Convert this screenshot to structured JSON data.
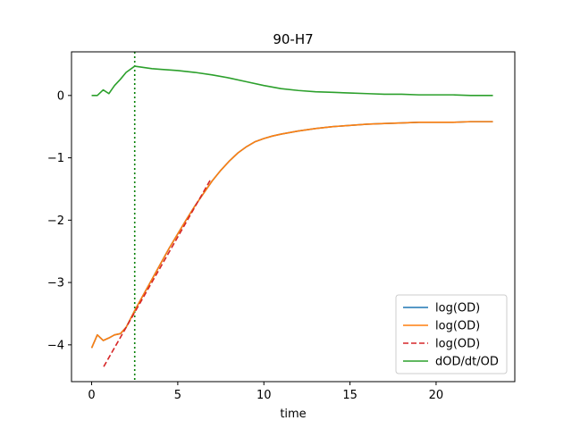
{
  "chart_data": {
    "type": "line",
    "title": "90-H7",
    "xlabel": "time",
    "ylabel": "",
    "xlim": [
      -1.17,
      24.57
    ],
    "ylim": [
      -4.59,
      0.7
    ],
    "xticks": [
      0,
      5,
      10,
      15,
      20
    ],
    "yticks": [
      -4,
      -3,
      -2,
      -1,
      0
    ],
    "grid": false,
    "legend_position": "lower-right",
    "vline": {
      "x": 2.5,
      "color": "#008000",
      "style": "dotted"
    },
    "series": [
      {
        "name": "log(OD)",
        "color": "#1f77b4",
        "style": "solid",
        "x": [
          0,
          0.33,
          0.67,
          1,
          1.33,
          1.67,
          2,
          2.5,
          3,
          3.5,
          4,
          4.5,
          5,
          5.5,
          6,
          6.5,
          7,
          7.5,
          8,
          8.5,
          9,
          9.5,
          10,
          10.5,
          11,
          12,
          13,
          14,
          15,
          16,
          17,
          18,
          19,
          20,
          21,
          22,
          23.3
        ],
        "y": [
          -4.05,
          -3.84,
          -3.93,
          -3.89,
          -3.84,
          -3.82,
          -3.72,
          -3.45,
          -3.2,
          -2.95,
          -2.7,
          -2.45,
          -2.22,
          -1.99,
          -1.77,
          -1.57,
          -1.37,
          -1.2,
          -1.05,
          -0.92,
          -0.82,
          -0.74,
          -0.69,
          -0.65,
          -0.62,
          -0.57,
          -0.53,
          -0.5,
          -0.48,
          -0.46,
          -0.45,
          -0.44,
          -0.43,
          -0.43,
          -0.43,
          -0.42,
          -0.42
        ]
      },
      {
        "name": "log(OD)",
        "color": "#ff7f0e",
        "style": "solid",
        "x": [
          0,
          0.33,
          0.67,
          1,
          1.33,
          1.67,
          2,
          2.5,
          3,
          3.5,
          4,
          4.5,
          5,
          5.5,
          6,
          6.5,
          7,
          7.5,
          8,
          8.5,
          9,
          9.5,
          10,
          10.5,
          11,
          12,
          13,
          14,
          15,
          16,
          17,
          18,
          19,
          20,
          21,
          22,
          23.3
        ],
        "y": [
          -4.05,
          -3.84,
          -3.93,
          -3.89,
          -3.84,
          -3.82,
          -3.72,
          -3.45,
          -3.2,
          -2.95,
          -2.7,
          -2.45,
          -2.22,
          -1.99,
          -1.77,
          -1.57,
          -1.37,
          -1.2,
          -1.05,
          -0.92,
          -0.82,
          -0.74,
          -0.69,
          -0.65,
          -0.62,
          -0.57,
          -0.53,
          -0.5,
          -0.48,
          -0.46,
          -0.45,
          -0.44,
          -0.43,
          -0.43,
          -0.43,
          -0.42,
          -0.42
        ]
      },
      {
        "name": "log(OD)",
        "color": "#d62728",
        "style": "dashed",
        "x": [
          0.7,
          6.9
        ],
        "y": [
          -4.35,
          -1.35
        ]
      },
      {
        "name": "dOD/dt/OD",
        "color": "#2ca02c",
        "style": "solid",
        "x": [
          0,
          0.33,
          0.67,
          1,
          1.33,
          1.67,
          2,
          2.5,
          3,
          3.5,
          4,
          5,
          6,
          7,
          8,
          9,
          10,
          11,
          12,
          13,
          14,
          15,
          16,
          17,
          18,
          19,
          20,
          21,
          22,
          23.3
        ],
        "y": [
          0.0,
          0.0,
          0.09,
          0.03,
          0.16,
          0.26,
          0.37,
          0.47,
          0.45,
          0.43,
          0.42,
          0.4,
          0.37,
          0.33,
          0.28,
          0.22,
          0.16,
          0.11,
          0.08,
          0.06,
          0.05,
          0.04,
          0.03,
          0.02,
          0.02,
          0.01,
          0.01,
          0.01,
          0.0,
          0.0
        ]
      }
    ]
  }
}
